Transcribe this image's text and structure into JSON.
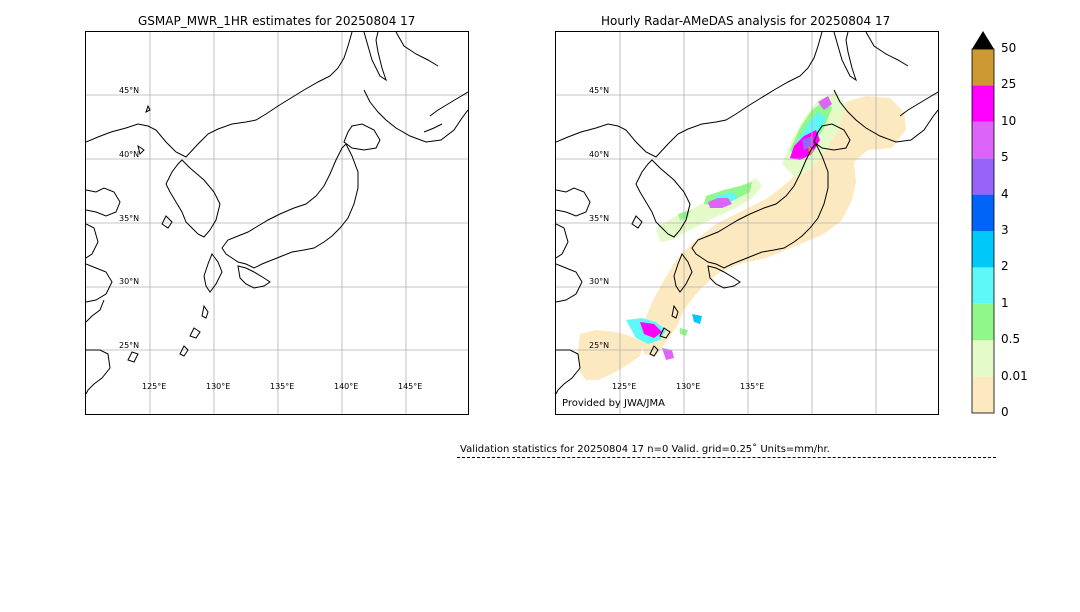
{
  "left_panel": {
    "title": "GSMAP_MWR_1HR estimates for 20250804 17",
    "lat_labels": [
      "45°N",
      "40°N",
      "35°N",
      "30°N",
      "25°N"
    ],
    "lon_labels": [
      "125°E",
      "130°E",
      "135°E",
      "140°E",
      "145°E"
    ]
  },
  "right_panel": {
    "title": "Hourly Radar-AMeDAS analysis for 20250804 17",
    "lat_labels": [
      "45°N",
      "40°N",
      "35°N",
      "30°N",
      "25°N"
    ],
    "lon_labels": [
      "125°E",
      "130°E",
      "135°E"
    ],
    "credit": "Provided by JWA/JMA"
  },
  "colorbar": {
    "labels": [
      "0",
      "0.01",
      "0.5",
      "1",
      "2",
      "3",
      "4",
      "5",
      "10",
      "25",
      "50"
    ],
    "colors": [
      "#fde9c0",
      "#e4fbc9",
      "#90f78a",
      "#5ef8f8",
      "#00c8f8",
      "#0064f8",
      "#9664f8",
      "#dd64f8",
      "#ff00ff",
      "#cc9933"
    ],
    "extend_color": "#000000"
  },
  "validation": {
    "text": "Validation statistics for 20250804 17  n=0 Valid. grid=0.25˚ Units=mm/hr."
  }
}
